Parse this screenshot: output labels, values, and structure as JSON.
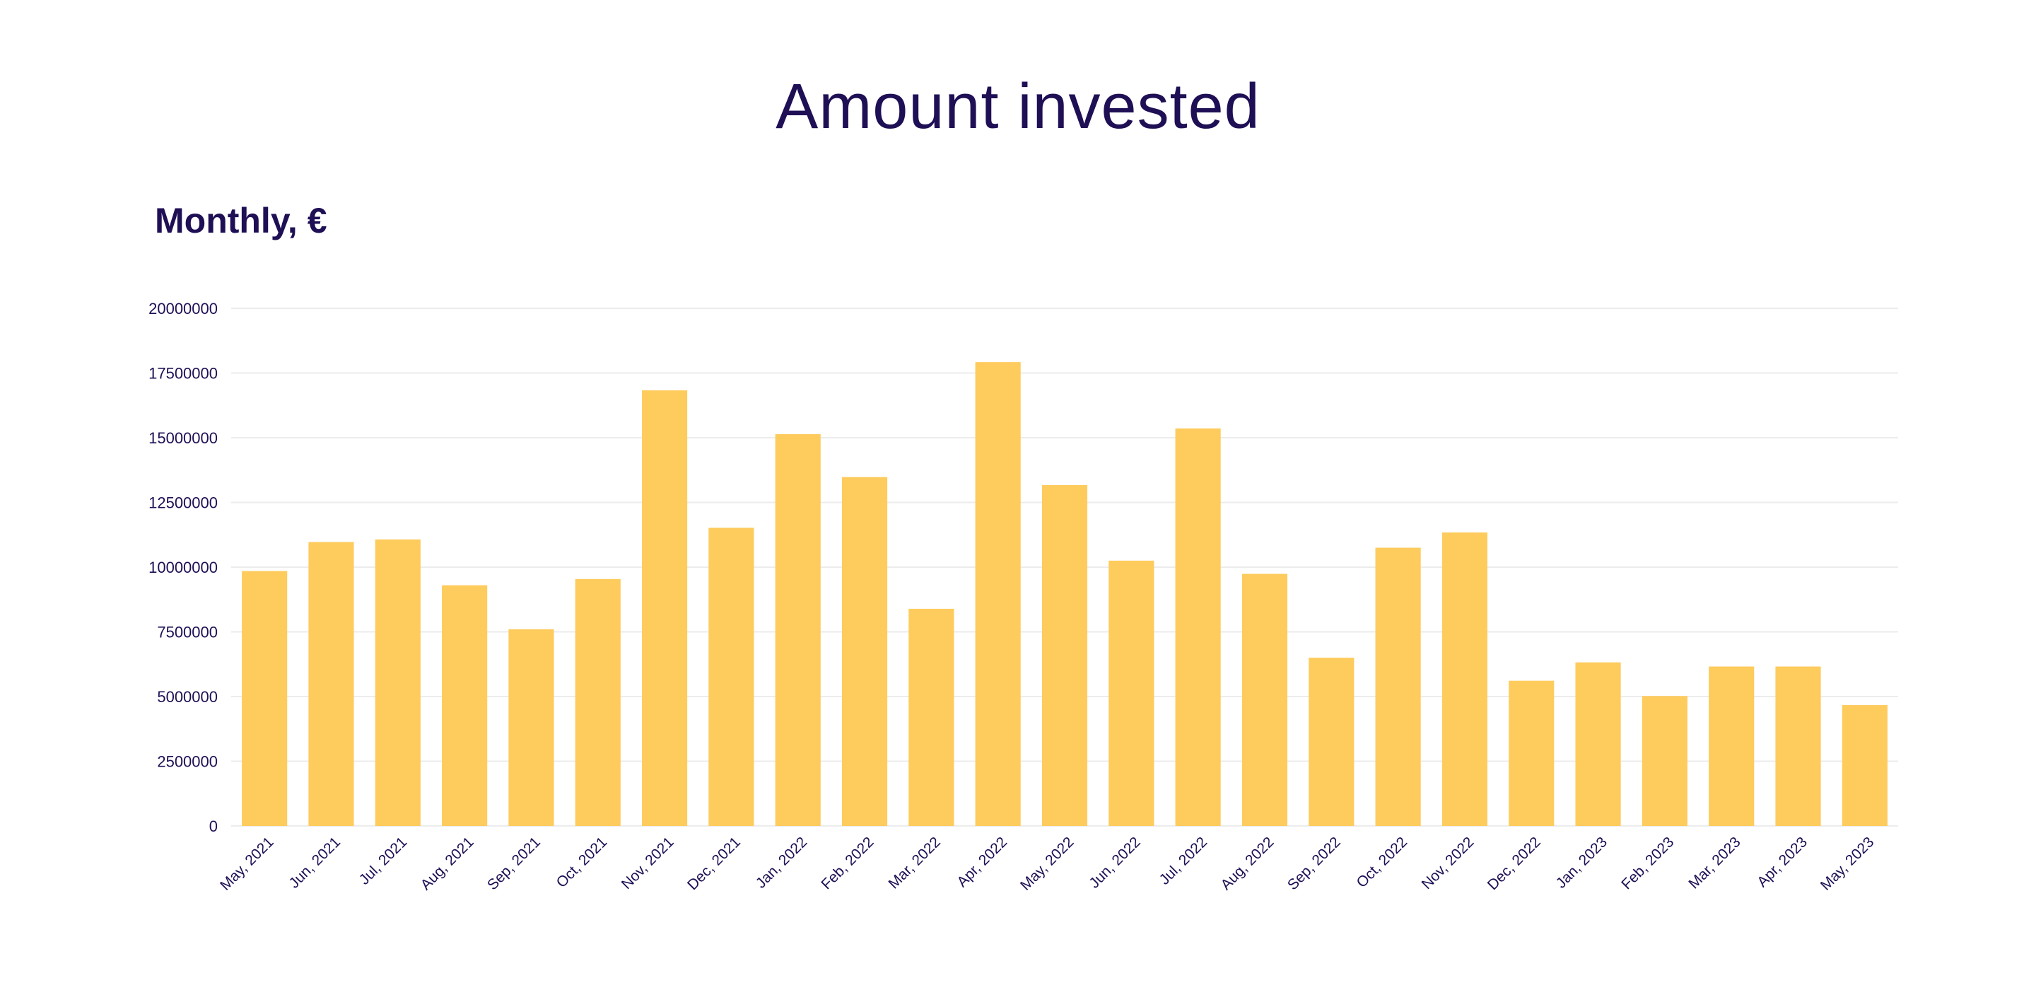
{
  "header": {
    "title": "Amount invested"
  },
  "chart_subtitle": "Monthly, €",
  "colors": {
    "bar": "#fecb5d",
    "text": "#1f0f55",
    "grid": "#ececec"
  },
  "chart_data": {
    "type": "bar",
    "title": "Amount invested",
    "subtitle": "Monthly, €",
    "xlabel": "",
    "ylabel": "",
    "ylim": [
      0,
      20000000
    ],
    "y_ticks": [
      0,
      2500000,
      5000000,
      7500000,
      10000000,
      12500000,
      15000000,
      17500000,
      20000000
    ],
    "y_tick_labels": [
      "0",
      "2500000",
      "5000000",
      "7500000",
      "10000000",
      "12500000",
      "15000000",
      "17500000",
      "20000000"
    ],
    "grid": true,
    "categories": [
      "May, 2021",
      "Jun, 2021",
      "Jul, 2021",
      "Aug, 2021",
      "Sep, 2021",
      "Oct, 2021",
      "Nov, 2021",
      "Dec, 2021",
      "Jan, 2022",
      "Feb, 2022",
      "Mar, 2022",
      "Apr, 2022",
      "May, 2022",
      "Jun, 2022",
      "Jul, 2022",
      "Aug, 2022",
      "Sep, 2022",
      "Oct, 2022",
      "Nov, 2022",
      "Dec, 2022",
      "Jan, 2023",
      "Feb, 2023",
      "Mar, 2023",
      "Apr, 2023",
      "May, 2023"
    ],
    "values": [
      9850000,
      10970000,
      11070000,
      9300000,
      7600000,
      9540000,
      16830000,
      11520000,
      15140000,
      13480000,
      8390000,
      17920000,
      13170000,
      10250000,
      15360000,
      9740000,
      6500000,
      10750000,
      11340000,
      5610000,
      6320000,
      5020000,
      6160000,
      6160000,
      4670000
    ]
  }
}
